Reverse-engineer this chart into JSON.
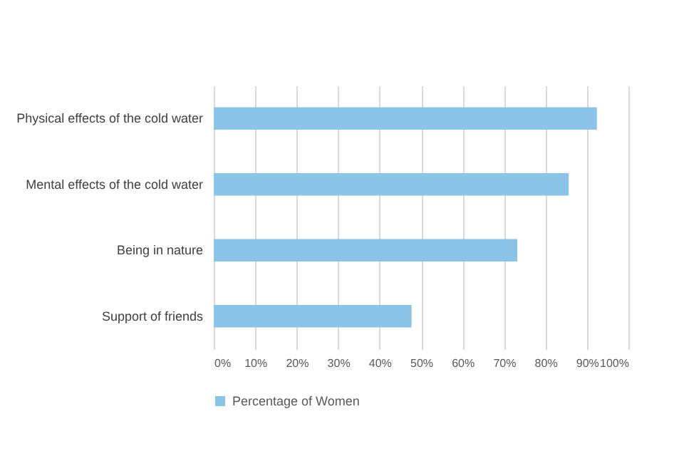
{
  "chart_data": {
    "type": "bar",
    "orientation": "horizontal",
    "categories": [
      "Physical effects of the cold water",
      "Mental effects of the cold water",
      "Being in nature",
      "Support of friends"
    ],
    "series": [
      {
        "name": "Percentage of Women",
        "color": "#8cc4e8",
        "values": [
          92.4,
          85.6,
          73.2,
          47.7
        ]
      }
    ],
    "xlim": [
      0,
      100
    ],
    "xticks": [
      {
        "value": 0,
        "label": "0%"
      },
      {
        "value": 10,
        "label": "10%"
      },
      {
        "value": 20,
        "label": "20%"
      },
      {
        "value": 30,
        "label": "30%"
      },
      {
        "value": 40,
        "label": "40%"
      },
      {
        "value": 50,
        "label": "50%"
      },
      {
        "value": 60,
        "label": "60%"
      },
      {
        "value": 70,
        "label": "70%"
      },
      {
        "value": 80,
        "label": "80%"
      },
      {
        "value": 90,
        "label": "90%"
      },
      {
        "value": 100,
        "label": "100%"
      }
    ],
    "grid": "x",
    "legend": "bottom"
  }
}
